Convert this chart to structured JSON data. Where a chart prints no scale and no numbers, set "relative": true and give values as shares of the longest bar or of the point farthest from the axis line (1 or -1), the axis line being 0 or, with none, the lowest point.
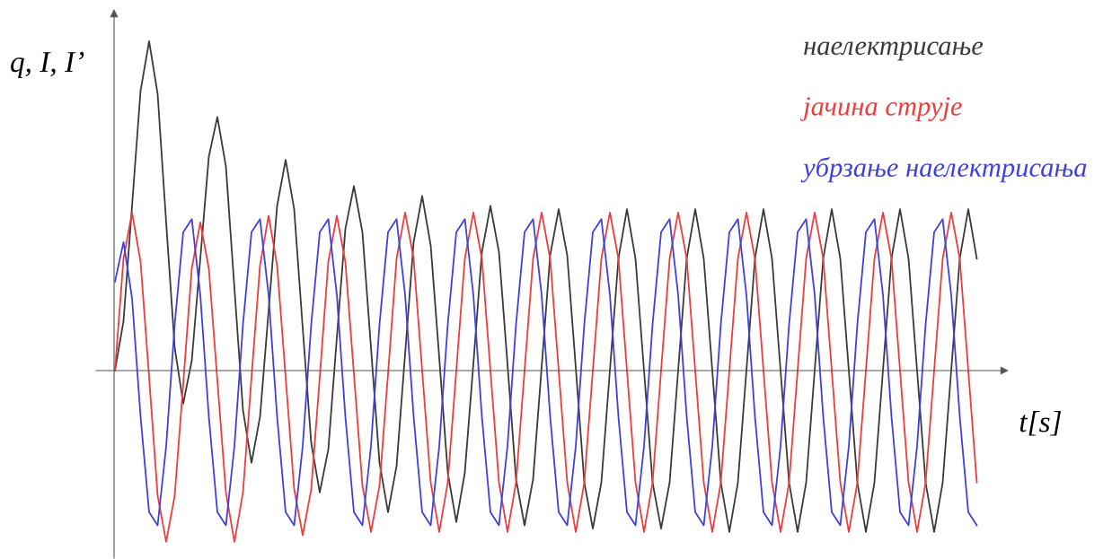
{
  "chart_data": {
    "type": "line",
    "relative": true,
    "xlabel": "t[s]",
    "ylabel": "q, I, I’",
    "legend": "top right",
    "marker": "none",
    "line_style": "solid",
    "categories": [
      null,
      null,
      null,
      null,
      null,
      null,
      null,
      null,
      null,
      null,
      null,
      null,
      null,
      null,
      null,
      null,
      null,
      null,
      null,
      null,
      null,
      null,
      null,
      null,
      null,
      null,
      null,
      null,
      null,
      null,
      null,
      null,
      null,
      null,
      null,
      null,
      null,
      null,
      null,
      null,
      null,
      null,
      null,
      null,
      null,
      null,
      null,
      null,
      null,
      null,
      null,
      null,
      null,
      null,
      null,
      null,
      null,
      null,
      null,
      null,
      null,
      null,
      null,
      null,
      null,
      null,
      null,
      null,
      null,
      null,
      null,
      null,
      null,
      null,
      null,
      null,
      null,
      null,
      null,
      null,
      null,
      null,
      null,
      null,
      null,
      null,
      null,
      null,
      null,
      null,
      null,
      null,
      null,
      null,
      null,
      null,
      null,
      null,
      null,
      null,
      null,
      null
    ],
    "series": [
      {
        "name": "наелектрисање",
        "color": "#3a3a3a",
        "values": [
          0,
          0.15,
          0.5,
          0.85,
          1.0,
          0.84,
          0.45,
          0.07,
          -0.1,
          0.03,
          0.34,
          0.65,
          0.77,
          0.62,
          0.25,
          -0.12,
          -0.28,
          -0.14,
          0.18,
          0.5,
          0.64,
          0.49,
          0.13,
          -0.22,
          -0.37,
          -0.24,
          0.1,
          0.43,
          0.56,
          0.42,
          0.07,
          -0.28,
          -0.43,
          -0.29,
          0.05,
          0.39,
          0.53,
          0.38,
          0.04,
          -0.31,
          -0.46,
          -0.31,
          0.02,
          0.36,
          0.5,
          0.36,
          0.02,
          -0.33,
          -0.47,
          -0.33,
          0.01,
          0.35,
          0.49,
          0.35,
          0.01,
          -0.34,
          -0.48,
          -0.34,
          0,
          0.34,
          0.49,
          0.34,
          0,
          -0.34,
          -0.48,
          -0.34,
          0,
          0.34,
          0.49,
          0.34,
          0,
          -0.34,
          -0.49,
          -0.34,
          0,
          0.34,
          0.49,
          0.34,
          0,
          -0.34,
          -0.49,
          -0.34,
          0,
          0.34,
          0.49,
          0.34,
          0,
          -0.34,
          -0.49,
          -0.34,
          0,
          0.34,
          0.49,
          0.34,
          0,
          -0.34,
          -0.49,
          -0.34,
          0,
          0.34,
          0.49,
          0.34
        ]
      },
      {
        "name": "јачина струје",
        "color": "#f03c3c",
        "values": [
          0,
          0.34,
          0.48,
          0.33,
          -0.02,
          -0.38,
          -0.52,
          -0.38,
          -0.04,
          0.31,
          0.45,
          0.31,
          -0.03,
          -0.37,
          -0.52,
          -0.37,
          -0.02,
          0.32,
          0.47,
          0.32,
          -0.02,
          -0.36,
          -0.5,
          -0.36,
          -0.02,
          0.33,
          0.47,
          0.33,
          -0.01,
          -0.35,
          -0.49,
          -0.35,
          -0.01,
          0.34,
          0.48,
          0.34,
          0,
          -0.34,
          -0.49,
          -0.34,
          0,
          0.34,
          0.48,
          0.34,
          0,
          -0.34,
          -0.49,
          -0.34,
          0,
          0.34,
          0.48,
          0.34,
          0,
          -0.34,
          -0.49,
          -0.34,
          0,
          0.34,
          0.48,
          0.34,
          0,
          -0.34,
          -0.49,
          -0.34,
          0,
          0.34,
          0.48,
          0.34,
          0,
          -0.34,
          -0.49,
          -0.34,
          0,
          0.34,
          0.48,
          0.34,
          0,
          -0.34,
          -0.49,
          -0.34,
          0,
          0.34,
          0.48,
          0.34,
          0,
          -0.34,
          -0.49,
          -0.34,
          0,
          0.34,
          0.48,
          0.34,
          0,
          -0.34,
          -0.49,
          -0.34,
          0,
          0.34,
          0.48,
          0.34,
          0,
          -0.34
        ]
      },
      {
        "name": "убрзање наелектрисања",
        "color": "#4040e0",
        "values": [
          0.27,
          0.39,
          0.22,
          -0.14,
          -0.43,
          -0.47,
          -0.23,
          0.14,
          0.42,
          0.46,
          0.23,
          -0.14,
          -0.43,
          -0.47,
          -0.23,
          0.14,
          0.42,
          0.46,
          0.23,
          -0.14,
          -0.43,
          -0.47,
          -0.23,
          0.14,
          0.42,
          0.46,
          0.23,
          -0.14,
          -0.43,
          -0.47,
          -0.23,
          0.14,
          0.42,
          0.46,
          0.23,
          -0.14,
          -0.43,
          -0.47,
          -0.23,
          0.14,
          0.42,
          0.46,
          0.23,
          -0.14,
          -0.43,
          -0.47,
          -0.23,
          0.14,
          0.42,
          0.46,
          0.23,
          -0.14,
          -0.43,
          -0.47,
          -0.23,
          0.14,
          0.42,
          0.46,
          0.23,
          -0.14,
          -0.43,
          -0.47,
          -0.23,
          0.14,
          0.42,
          0.46,
          0.23,
          -0.14,
          -0.43,
          -0.47,
          -0.23,
          0.14,
          0.42,
          0.46,
          0.23,
          -0.14,
          -0.43,
          -0.47,
          -0.23,
          0.14,
          0.42,
          0.46,
          0.23,
          -0.14,
          -0.43,
          -0.47,
          -0.23,
          0.14,
          0.42,
          0.46,
          0.23,
          -0.14,
          -0.43,
          -0.47,
          -0.23,
          0.14,
          0.42,
          0.46,
          0.23,
          -0.14,
          -0.43,
          -0.47
        ]
      }
    ]
  }
}
